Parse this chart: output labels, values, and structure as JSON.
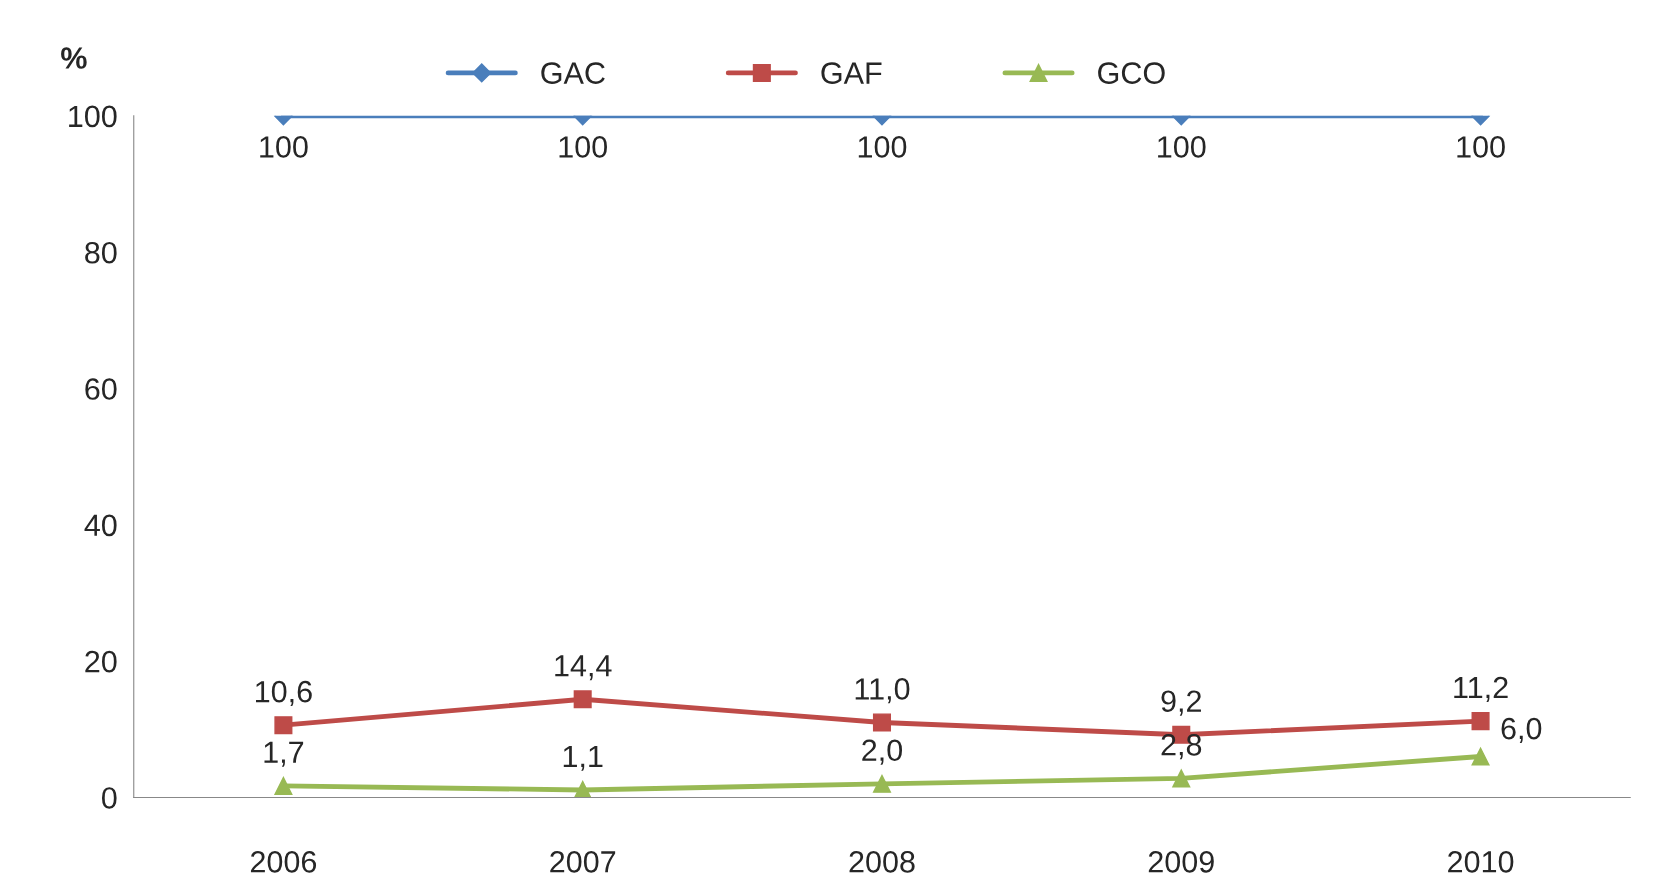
{
  "chart_data": {
    "type": "line",
    "ylabel": "%",
    "categories": [
      "2006",
      "2007",
      "2008",
      "2009",
      "2010"
    ],
    "series": [
      {
        "name": "GAC",
        "color": "#4a7ebb",
        "marker": "diamond",
        "values": [
          100,
          100,
          100,
          100,
          100
        ],
        "value_labels": [
          "100",
          "100",
          "100",
          "100",
          "100"
        ]
      },
      {
        "name": "GAF",
        "color": "#be4b48",
        "marker": "square",
        "values": [
          10.6,
          14.4,
          11.0,
          9.2,
          11.2
        ],
        "value_labels": [
          "10,6",
          "14,4",
          "11,0",
          "9,2",
          "11,2"
        ]
      },
      {
        "name": "GCO",
        "color": "#98b954",
        "marker": "triangle",
        "values": [
          1.7,
          1.1,
          2.0,
          2.8,
          6.0
        ],
        "value_labels": [
          "1,7",
          "1,1",
          "2,0",
          "2,8",
          "6,0"
        ]
      }
    ],
    "ylim": [
      0,
      100
    ],
    "yticks": [
      0,
      20,
      40,
      60,
      80,
      100
    ],
    "grid": false,
    "legend": "top",
    "line_style": "solid"
  }
}
